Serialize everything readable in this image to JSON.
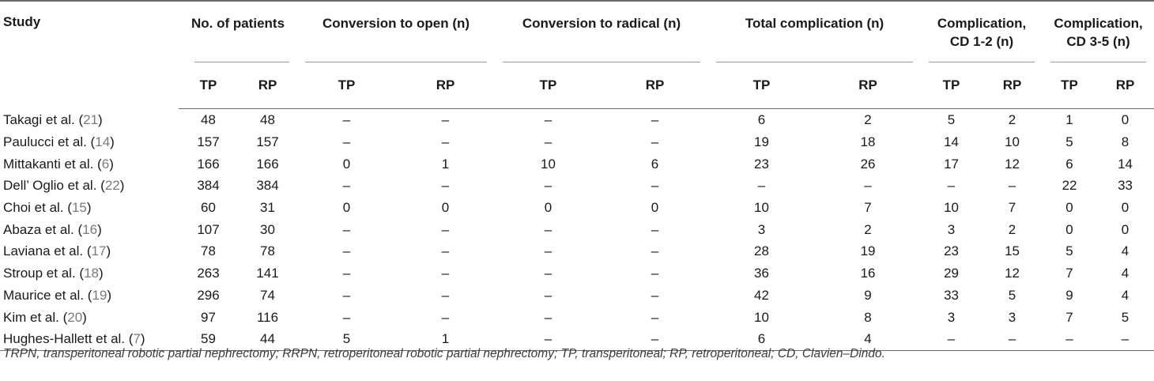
{
  "headers": {
    "study": "Study",
    "groups": [
      {
        "lines": [
          "No. of patients"
        ]
      },
      {
        "lines": [
          "Conversion to open (n)"
        ]
      },
      {
        "lines": [
          "Conversion to radical (n)"
        ]
      },
      {
        "lines": [
          "Total complication (n)"
        ]
      },
      {
        "lines": [
          "Complication,",
          "CD 1-2 (n)"
        ]
      },
      {
        "lines": [
          "Complication,",
          "CD 3-5 (n)"
        ]
      }
    ],
    "sub": [
      "TP",
      "RP",
      "TP",
      "RP",
      "TP",
      "RP",
      "TP",
      "RP",
      "TP",
      "RP",
      "TP",
      "RP"
    ]
  },
  "rows": [
    {
      "name": "Takagi et al. (",
      "ref": "21",
      "close": ")",
      "cells": [
        "48",
        "48",
        "–",
        "–",
        "–",
        "–",
        "6",
        "2",
        "5",
        "2",
        "1",
        "0"
      ]
    },
    {
      "name": "Paulucci et al. (",
      "ref": "14",
      "close": ")",
      "cells": [
        "157",
        "157",
        "–",
        "–",
        "–",
        "–",
        "19",
        "18",
        "14",
        "10",
        "5",
        "8"
      ]
    },
    {
      "name": "Mittakanti et al. (",
      "ref": "6",
      "close": ")",
      "cells": [
        "166",
        "166",
        "0",
        "1",
        "10",
        "6",
        "23",
        "26",
        "17",
        "12",
        "6",
        "14"
      ]
    },
    {
      "name": "Dell’ Oglio et al. (",
      "ref": "22",
      "close": ")",
      "cells": [
        "384",
        "384",
        "–",
        "–",
        "–",
        "–",
        "–",
        "–",
        "–",
        "–",
        "22",
        "33"
      ]
    },
    {
      "name": "Choi et al. (",
      "ref": "15",
      "close": ")",
      "cells": [
        "60",
        "31",
        "0",
        "0",
        "0",
        "0",
        "10",
        "7",
        "10",
        "7",
        "0",
        "0"
      ]
    },
    {
      "name": "Abaza et al. (",
      "ref": "16",
      "close": ")",
      "cells": [
        "107",
        "30",
        "–",
        "–",
        "–",
        "–",
        "3",
        "2",
        "3",
        "2",
        "0",
        "0"
      ]
    },
    {
      "name": "Laviana et al. (",
      "ref": "17",
      "close": ")",
      "cells": [
        "78",
        "78",
        "–",
        "–",
        "–",
        "–",
        "28",
        "19",
        "23",
        "15",
        "5",
        "4"
      ]
    },
    {
      "name": "Stroup et al. (",
      "ref": "18",
      "close": ")",
      "cells": [
        "263",
        "141",
        "–",
        "–",
        "–",
        "–",
        "36",
        "16",
        "29",
        "12",
        "7",
        "4"
      ]
    },
    {
      "name": "Maurice et al. (",
      "ref": "19",
      "close": ")",
      "cells": [
        "296",
        "74",
        "–",
        "–",
        "–",
        "–",
        "42",
        "9",
        "33",
        "5",
        "9",
        "4"
      ]
    },
    {
      "name": "Kim et al. (",
      "ref": "20",
      "close": ")",
      "cells": [
        "97",
        "116",
        "–",
        "–",
        "–",
        "–",
        "10",
        "8",
        "3",
        "3",
        "7",
        "5"
      ]
    },
    {
      "name": "Hughes-Hallett et al. (",
      "ref": "7",
      "close": ")",
      "cells": [
        "59",
        "44",
        "5",
        "1",
        "–",
        "–",
        "6",
        "4",
        "–",
        "–",
        "–",
        "–"
      ]
    }
  ],
  "footnote": "TRPN, transperitoneal robotic partial nephrectomy; RRPN, retroperitoneal robotic partial nephrectomy; TP, transperitoneal; RP, retroperitoneal; CD, Clavien–Dindo.",
  "colors": {
    "rule": "#6b6b6b",
    "reference": "#7a7a7a"
  }
}
